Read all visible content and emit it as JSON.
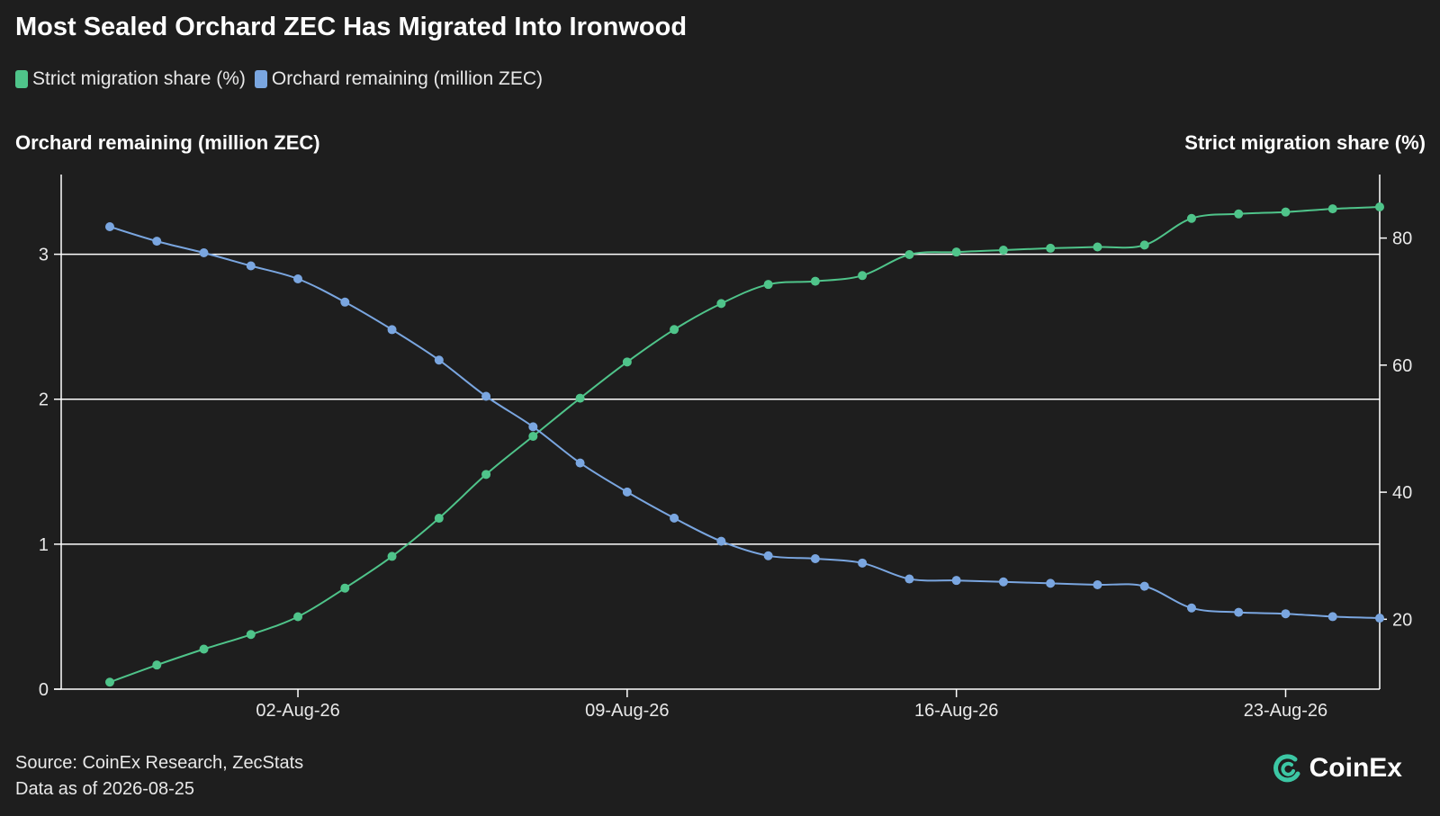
{
  "title": "Most Sealed Orchard ZEC Has Migrated Into Ironwood",
  "legend": [
    {
      "label": "Strict migration share (%)",
      "color": "#4fc48a"
    },
    {
      "label": "Orchard remaining (million ZEC)",
      "color": "#7aa6e0"
    }
  ],
  "footer": {
    "source": "Source: CoinEx Research, ZecStats",
    "asof": "Data as of 2026-08-25",
    "brand": "CoinEx"
  },
  "chart_data": {
    "type": "line",
    "x": [
      "2026-07-29",
      "2026-07-30",
      "2026-07-31",
      "2026-08-01",
      "2026-08-02",
      "2026-08-03",
      "2026-08-04",
      "2026-08-05",
      "2026-08-06",
      "2026-08-07",
      "2026-08-08",
      "2026-08-09",
      "2026-08-10",
      "2026-08-11",
      "2026-08-12",
      "2026-08-13",
      "2026-08-14",
      "2026-08-15",
      "2026-08-16",
      "2026-08-17",
      "2026-08-18",
      "2026-08-19",
      "2026-08-20",
      "2026-08-21",
      "2026-08-22",
      "2026-08-23",
      "2026-08-24",
      "2026-08-25"
    ],
    "xticks": [
      {
        "date": "2026-08-02",
        "label": "02-Aug-26"
      },
      {
        "date": "2026-08-09",
        "label": "09-Aug-26"
      },
      {
        "date": "2026-08-16",
        "label": "16-Aug-26"
      },
      {
        "date": "2026-08-23",
        "label": "23-Aug-26"
      }
    ],
    "y_left": {
      "label": "Orchard remaining (million ZEC)",
      "ticks": [
        0,
        1,
        2,
        3
      ],
      "range": [
        0,
        3.55
      ]
    },
    "y_right": {
      "label": "Strict migration share (%)",
      "ticks": [
        20,
        40,
        60,
        80
      ],
      "range": [
        9,
        90
      ]
    },
    "grid": "horizontal",
    "legend_position": "top-left",
    "series": [
      {
        "name": "Strict migration share (%)",
        "axis": "right",
        "color": "#4fc48a",
        "values": [
          10.1,
          12.8,
          15.3,
          17.6,
          20.4,
          24.9,
          29.9,
          35.9,
          42.8,
          48.8,
          54.8,
          60.5,
          65.6,
          69.7,
          72.7,
          73.2,
          74.1,
          77.4,
          77.8,
          78.1,
          78.4,
          78.6,
          78.9,
          83.1,
          83.8,
          84.1,
          84.6,
          84.9
        ]
      },
      {
        "name": "Orchard remaining (million ZEC)",
        "axis": "left",
        "color": "#7aa6e0",
        "values": [
          3.19,
          3.09,
          3.01,
          2.92,
          2.83,
          2.67,
          2.48,
          2.27,
          2.02,
          1.81,
          1.56,
          1.36,
          1.18,
          1.02,
          0.92,
          0.9,
          0.87,
          0.76,
          0.75,
          0.74,
          0.73,
          0.72,
          0.71,
          0.56,
          0.53,
          0.52,
          0.5,
          0.49
        ]
      }
    ]
  }
}
